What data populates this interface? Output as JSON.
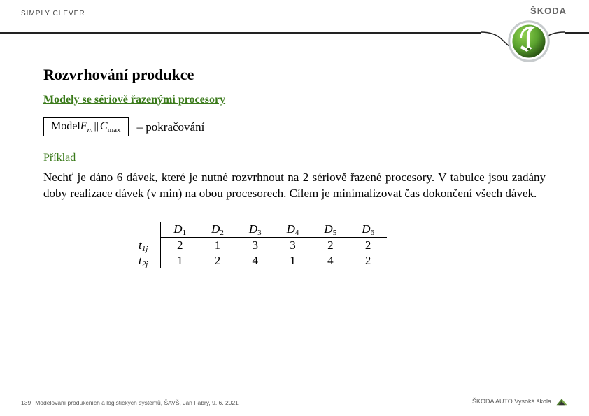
{
  "header": {
    "tagline": "SIMPLY CLEVER",
    "brand": "ŠKODA"
  },
  "logo": {
    "outer_ring": "#b8bcbe",
    "inner_ring": "#ffffff",
    "field": "#5aa22e",
    "wing": "#ffffff",
    "gradient_light": "#78c23a",
    "gradient_dark": "#3d7a1e"
  },
  "title": "Rozvrhování produkce",
  "subtitle": "Modely se sériově řazenými procesory",
  "model": {
    "prefix": "Model ",
    "F": "F",
    "m": "m",
    "bars": "||",
    "C": "C",
    "max": "max",
    "continuation": "–  pokračování"
  },
  "example_label": "Příklad",
  "body_text": "Nechť je dáno 6 dávek, které je nutné rozvrhnout na 2 sériově řazené procesory. V tabulce jsou zadány doby realizace dávek (v min) na obou procesorech. Cílem je minimalizovat čas dokončení všech dávek.",
  "table": {
    "col_prefix": "D",
    "col_indices": [
      "1",
      "2",
      "3",
      "4",
      "5",
      "6"
    ],
    "row_labels": [
      {
        "sym": "t",
        "sub": "1j"
      },
      {
        "sym": "t",
        "sub": "2j"
      }
    ],
    "rows": [
      [
        "2",
        "1",
        "3",
        "3",
        "2",
        "2"
      ],
      [
        "1",
        "2",
        "4",
        "1",
        "4",
        "2"
      ]
    ]
  },
  "footer": {
    "page_num": "139",
    "text": "Modelování produkčních a logistických systémů, ŠAVŠ, Jan Fábry, 9. 6. 2021",
    "right": "ŠKODA AUTO Vysoká škola"
  }
}
